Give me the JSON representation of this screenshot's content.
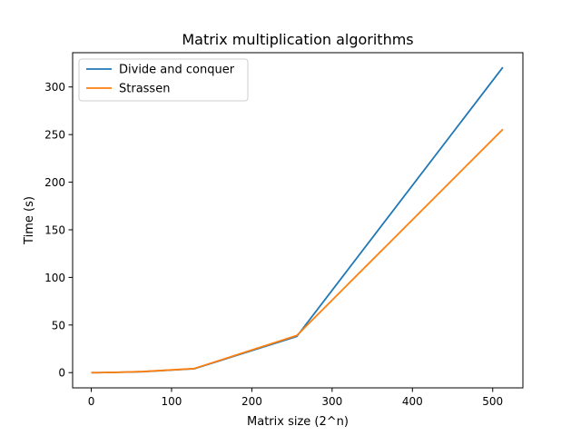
{
  "chart_data": {
    "type": "line",
    "title": "Matrix multiplication algorithms",
    "xlabel": "Matrix size (2^n)",
    "ylabel": "Time (s)",
    "xlim": [
      -23.2,
      537.6
    ],
    "ylim": [
      -16,
      336
    ],
    "xticks": [
      0,
      100,
      200,
      300,
      400,
      500
    ],
    "yticks": [
      0,
      50,
      100,
      150,
      200,
      250,
      300
    ],
    "grid": false,
    "legend": "top-left",
    "x": [
      1,
      2,
      4,
      8,
      16,
      32,
      64,
      128,
      256,
      512
    ],
    "series": [
      {
        "name": "Divide and conquer",
        "color": "#1f77b4",
        "values": [
          0.0,
          0.0,
          0.0,
          0.0,
          0.1,
          0.3,
          1.0,
          4.0,
          38.0,
          320.0
        ]
      },
      {
        "name": "Strassen",
        "color": "#ff7f0e",
        "values": [
          0.0,
          0.0,
          0.0,
          0.0,
          0.1,
          0.3,
          1.1,
          4.2,
          39.0,
          255.0
        ]
      }
    ]
  }
}
